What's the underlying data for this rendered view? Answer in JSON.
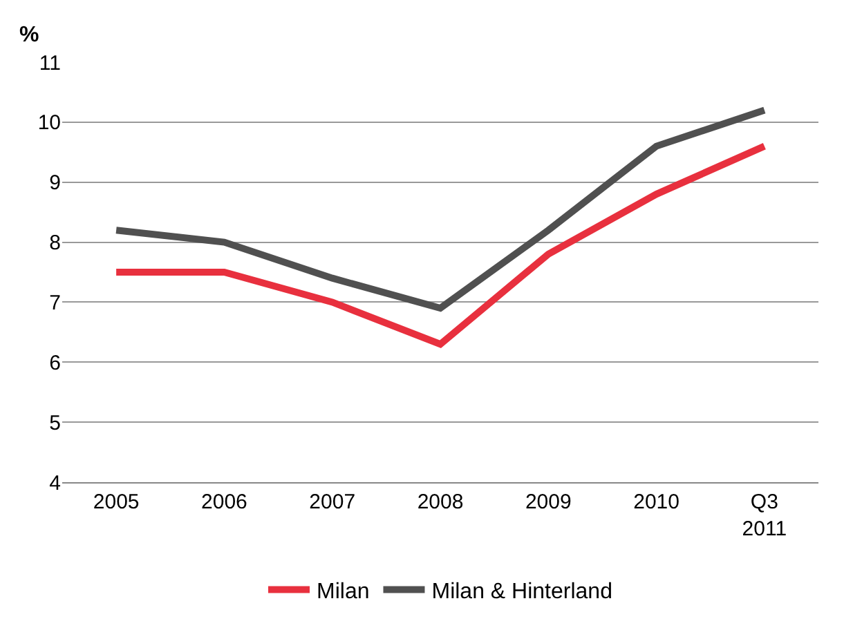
{
  "chart_data": {
    "type": "line",
    "ylabel": "%",
    "categories": [
      "2005",
      "2006",
      "2007",
      "2008",
      "2009",
      "2010",
      "Q3\n2011"
    ],
    "series": [
      {
        "name": "Milan",
        "color": "#e8303e",
        "values": [
          7.5,
          7.5,
          7.0,
          6.3,
          7.8,
          8.8,
          9.6
        ]
      },
      {
        "name": "Milan & Hinterland",
        "color": "#505050",
        "values": [
          8.2,
          8.0,
          7.4,
          6.9,
          8.2,
          9.6,
          10.2
        ]
      }
    ],
    "ylim": [
      4,
      11
    ],
    "yticks": [
      4,
      5,
      6,
      7,
      8,
      9,
      10,
      11
    ],
    "grid": "y",
    "legend": "bottom",
    "marker": "none",
    "line_style": "solid"
  }
}
